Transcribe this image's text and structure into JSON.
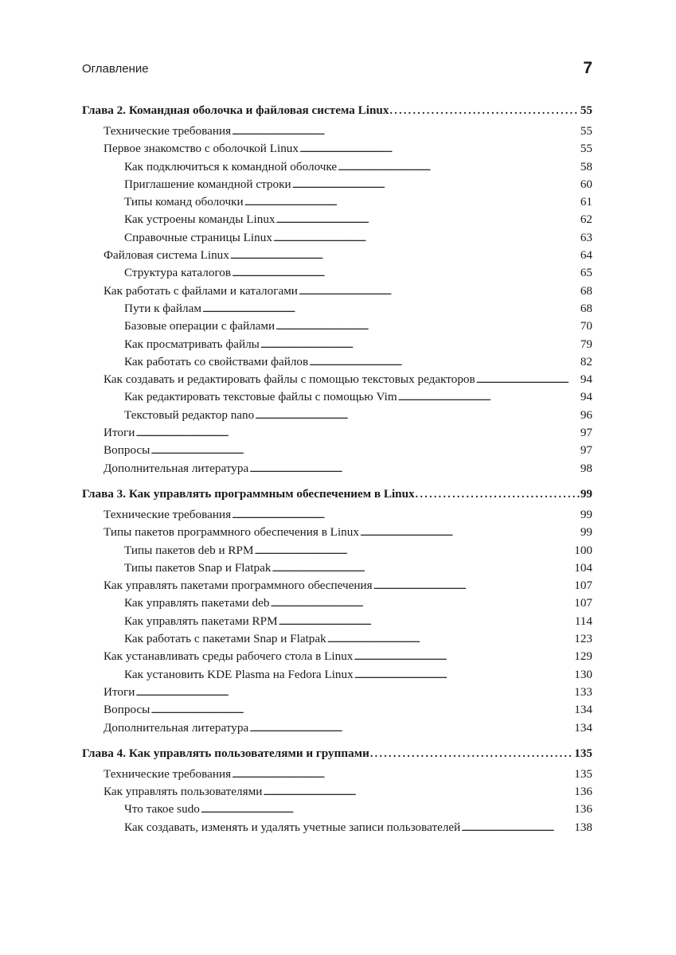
{
  "header": {
    "title": "Оглавление",
    "page_number": "7"
  },
  "toc": [
    {
      "level": 0,
      "label": "Глава 2. Командная оболочка и файловая система Linux",
      "page": "55"
    },
    {
      "level": 1,
      "label": "Технические требования",
      "page": "55"
    },
    {
      "level": 1,
      "label": "Первое знакомство с оболочкой Linux",
      "page": "55"
    },
    {
      "level": 2,
      "label": "Как подключиться к командной оболочке",
      "page": "58"
    },
    {
      "level": 2,
      "label": "Приглашение командной строки",
      "page": "60"
    },
    {
      "level": 2,
      "label": "Типы команд оболочки",
      "page": "61"
    },
    {
      "level": 2,
      "label": "Как устроены команды Linux",
      "page": "62"
    },
    {
      "level": 2,
      "label": "Справочные страницы Linux",
      "page": "63"
    },
    {
      "level": 1,
      "label": "Файловая система Linux",
      "page": "64"
    },
    {
      "level": 2,
      "label": "Структура каталогов",
      "page": "65"
    },
    {
      "level": 1,
      "label": "Как работать с файлами и каталогами",
      "page": "68"
    },
    {
      "level": 2,
      "label": "Пути к файлам",
      "page": "68"
    },
    {
      "level": 2,
      "label": "Базовые операции с файлами",
      "page": "70"
    },
    {
      "level": 2,
      "label": "Как просматривать файлы",
      "page": "79"
    },
    {
      "level": 2,
      "label": "Как работать со свойствами файлов",
      "page": "82"
    },
    {
      "level": 1,
      "label": "Как создавать и редактировать файлы с помощью текстовых редакторов",
      "page": "94"
    },
    {
      "level": 2,
      "label": "Как редактировать текстовые файлы с помощью Vim",
      "page": "94"
    },
    {
      "level": 2,
      "label": "Текстовый редактор nano",
      "page": "96"
    },
    {
      "level": 1,
      "label": "Итоги",
      "page": "97"
    },
    {
      "level": 1,
      "label": "Вопросы",
      "page": "97"
    },
    {
      "level": 1,
      "label": "Дополнительная литература",
      "page": "98"
    },
    {
      "level": 0,
      "label": "Глава 3. Как управлять программным обеспечением в Linux",
      "page": "99"
    },
    {
      "level": 1,
      "label": "Технические требования",
      "page": "99"
    },
    {
      "level": 1,
      "label": "Типы пакетов программного обеспечения в Linux",
      "page": "99"
    },
    {
      "level": 2,
      "label": "Типы пакетов deb и RPM",
      "page": "100"
    },
    {
      "level": 2,
      "label": "Типы пакетов Snap и Flatpak",
      "page": "104"
    },
    {
      "level": 1,
      "label": "Как управлять пакетами программного обеспечения",
      "page": "107"
    },
    {
      "level": 2,
      "label": "Как управлять пакетами deb",
      "page": "107"
    },
    {
      "level": 2,
      "label": "Как управлять пакетами RPM",
      "page": "114"
    },
    {
      "level": 2,
      "label": "Как работать с пакетами Snap и Flatpak",
      "page": "123"
    },
    {
      "level": 1,
      "label": "Как устанавливать среды рабочего стола в Linux",
      "page": "129"
    },
    {
      "level": 2,
      "label": "Как установить KDE Plasma на Fedora Linux",
      "page": "130"
    },
    {
      "level": 1,
      "label": "Итоги",
      "page": "133"
    },
    {
      "level": 1,
      "label": "Вопросы",
      "page": "134"
    },
    {
      "level": 1,
      "label": "Дополнительная литература",
      "page": "134"
    },
    {
      "level": 0,
      "label": "Глава 4. Как управлять пользователями и группами",
      "page": "135"
    },
    {
      "level": 1,
      "label": "Технические требования",
      "page": "135"
    },
    {
      "level": 1,
      "label": "Как управлять пользователями",
      "page": "136"
    },
    {
      "level": 2,
      "label": "Что такое sudo",
      "page": "136"
    },
    {
      "level": 2,
      "label": "Как создавать, изменять и удалять учетные записи пользователей",
      "page": "138"
    }
  ]
}
